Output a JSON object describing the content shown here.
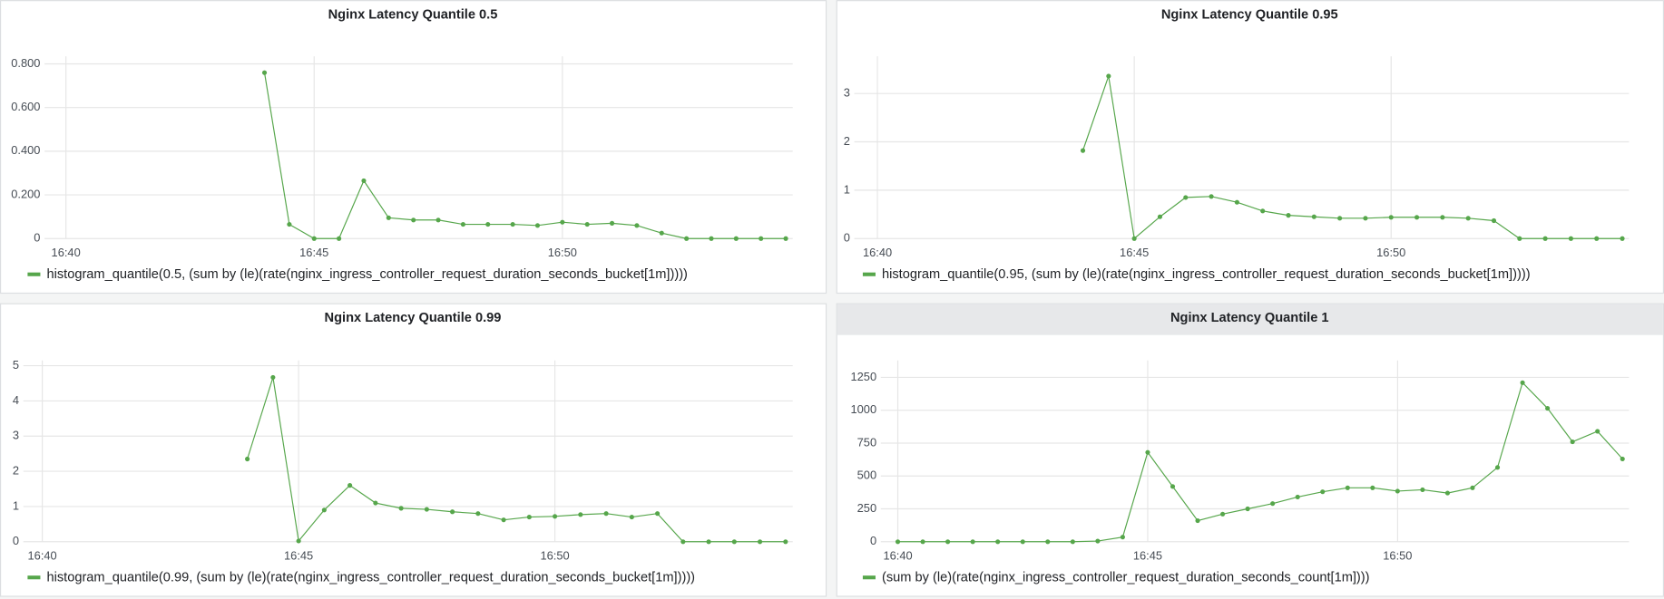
{
  "chart_data": [
    {
      "type": "line",
      "title": "Nginx Latency Quantile 0.5",
      "x": [
        1004,
        1004.5,
        1005,
        1005.5,
        1006,
        1006.5,
        1007,
        1007.5,
        1008,
        1008.5,
        1009,
        1009.5,
        1010,
        1010.5,
        1011,
        1011.5,
        1012,
        1012.5,
        1013,
        1013.5,
        1014,
        1014.5
      ],
      "series": [
        {
          "name": "histogram_quantile(0.5, (sum by (le)(rate(nginx_ingress_controller_request_duration_seconds_bucket[1m]))))",
          "color": "#56a64b",
          "values": [
            0.76,
            0.065,
            0,
            0,
            0.265,
            0.095,
            0.085,
            0.085,
            0.065,
            0.065,
            0.065,
            0.06,
            0.075,
            0.065,
            0.07,
            0.06,
            0.025,
            0,
            0,
            0,
            0,
            0
          ]
        }
      ],
      "xlim": [
        999.57,
        1014.64
      ],
      "xticks": [
        {
          "value": 1000,
          "label": "16:40"
        },
        {
          "value": 1005,
          "label": "16:45"
        },
        {
          "value": 1010,
          "label": "16:50"
        }
      ],
      "ylim": [
        0,
        0.835
      ],
      "yticks": [
        0,
        {
          "value": 0.2,
          "label": "0.200"
        },
        {
          "value": 0.4,
          "label": "0.400"
        },
        {
          "value": 0.6,
          "label": "0.600"
        },
        {
          "value": 0.8,
          "label": "0.800"
        }
      ],
      "grid": true
    },
    {
      "type": "line",
      "title": "Nginx Latency Quantile 0.95",
      "x": [
        1004,
        1004.5,
        1005,
        1005.5,
        1006,
        1006.5,
        1007,
        1007.5,
        1008,
        1008.5,
        1009,
        1009.5,
        1010,
        1010.5,
        1011,
        1011.5,
        1012,
        1012.5,
        1013,
        1013.5,
        1014,
        1014.5
      ],
      "series": [
        {
          "name": "histogram_quantile(0.95, (sum by (le)(rate(nginx_ingress_controller_request_duration_seconds_bucket[1m]))))",
          "color": "#56a64b",
          "values": [
            1.82,
            3.36,
            0,
            0.45,
            0.85,
            0.87,
            0.75,
            0.57,
            0.48,
            0.45,
            0.42,
            0.42,
            0.44,
            0.44,
            0.44,
            0.42,
            0.37,
            0,
            0,
            0,
            0,
            0
          ]
        }
      ],
      "xlim": [
        999.55,
        1014.63
      ],
      "xticks": [
        {
          "value": 1000,
          "label": "16:40"
        },
        {
          "value": 1005,
          "label": "16:45"
        },
        {
          "value": 1010,
          "label": "16:50"
        }
      ],
      "ylim": [
        0,
        3.77
      ],
      "yticks": [
        0,
        1,
        2,
        3
      ],
      "grid": true
    },
    {
      "type": "line",
      "title": "Nginx Latency Quantile 0.99",
      "x": [
        1004,
        1004.5,
        1005,
        1005.5,
        1006,
        1006.5,
        1007,
        1007.5,
        1008,
        1008.5,
        1009,
        1009.5,
        1010,
        1010.5,
        1011,
        1011.5,
        1012,
        1012.5,
        1013,
        1013.5,
        1014,
        1014.5
      ],
      "series": [
        {
          "name": "histogram_quantile(0.99, (sum by (le)(rate(nginx_ingress_controller_request_duration_seconds_bucket[1m]))))",
          "color": "#56a64b",
          "values": [
            2.35,
            4.67,
            0.02,
            0.9,
            1.6,
            1.1,
            0.95,
            0.92,
            0.85,
            0.8,
            0.62,
            0.7,
            0.72,
            0.77,
            0.8,
            0.7,
            0.8,
            0,
            0,
            0,
            0,
            0
          ]
        }
      ],
      "xlim": [
        999.63,
        1014.64
      ],
      "xticks": [
        {
          "value": 1000,
          "label": "16:40"
        },
        {
          "value": 1005,
          "label": "16:45"
        },
        {
          "value": 1010,
          "label": "16:50"
        }
      ],
      "ylim": [
        0,
        5.15
      ],
      "yticks": [
        0,
        1,
        2,
        3,
        4,
        5
      ],
      "grid": true
    },
    {
      "type": "line",
      "title": "Nginx Latency Quantile 1",
      "x": [
        1000,
        1000.5,
        1001,
        1001.5,
        1002,
        1002.5,
        1003,
        1003.5,
        1004,
        1004.5,
        1005,
        1005.5,
        1006,
        1006.5,
        1007,
        1007.5,
        1008,
        1008.5,
        1009,
        1009.5,
        1010,
        1010.5,
        1011,
        1011.5,
        1012,
        1012.5,
        1013,
        1013.5,
        1014,
        1014.5
      ],
      "series": [
        {
          "name": "(sum by (le)(rate(nginx_ingress_controller_request_duration_seconds_count[1m])))",
          "color": "#56a64b",
          "values": [
            0,
            0,
            0,
            0,
            0,
            0,
            0,
            0,
            5,
            35,
            680,
            420,
            160,
            210,
            250,
            290,
            340,
            380,
            410,
            410,
            385,
            395,
            370,
            410,
            565,
            1210,
            1015,
            760,
            840,
            630
          ]
        }
      ],
      "xlim": [
        999.66,
        1014.63
      ],
      "xticks": [
        {
          "value": 1000,
          "label": "16:40"
        },
        {
          "value": 1005,
          "label": "16:45"
        },
        {
          "value": 1010,
          "label": "16:50"
        }
      ],
      "ylim": [
        0,
        1379
      ],
      "yticks": [
        0,
        250,
        500,
        750,
        1000,
        1250
      ],
      "grid": true
    }
  ]
}
